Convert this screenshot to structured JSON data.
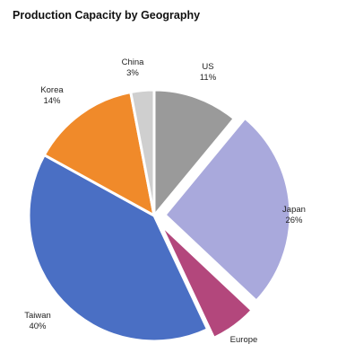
{
  "chart_data": {
    "type": "pie",
    "title": "Production Capacity by Geography",
    "slices": [
      {
        "name": "US",
        "label": "US",
        "value_label": "11%",
        "value": 11,
        "color": "#9a9a9a",
        "exploded": false
      },
      {
        "name": "Japan",
        "label": "Japan",
        "value_label": "26%",
        "value": 26,
        "color": "#a9a9dc",
        "exploded": true
      },
      {
        "name": "Europe",
        "label": "Europe",
        "value_label": "",
        "value": 6,
        "color": "#b3477c",
        "exploded": true
      },
      {
        "name": "Taiwan",
        "label": "Taiwan",
        "value_label": "40%",
        "value": 40,
        "color": "#4a6fc4",
        "exploded": false
      },
      {
        "name": "Korea",
        "label": "Korea",
        "value_label": "14%",
        "value": 14,
        "color": "#f08a2a",
        "exploded": false
      },
      {
        "name": "China",
        "label": "China",
        "value_label": "3%",
        "value": 3,
        "color": "#cfcfcf",
        "exploded": false
      }
    ]
  }
}
